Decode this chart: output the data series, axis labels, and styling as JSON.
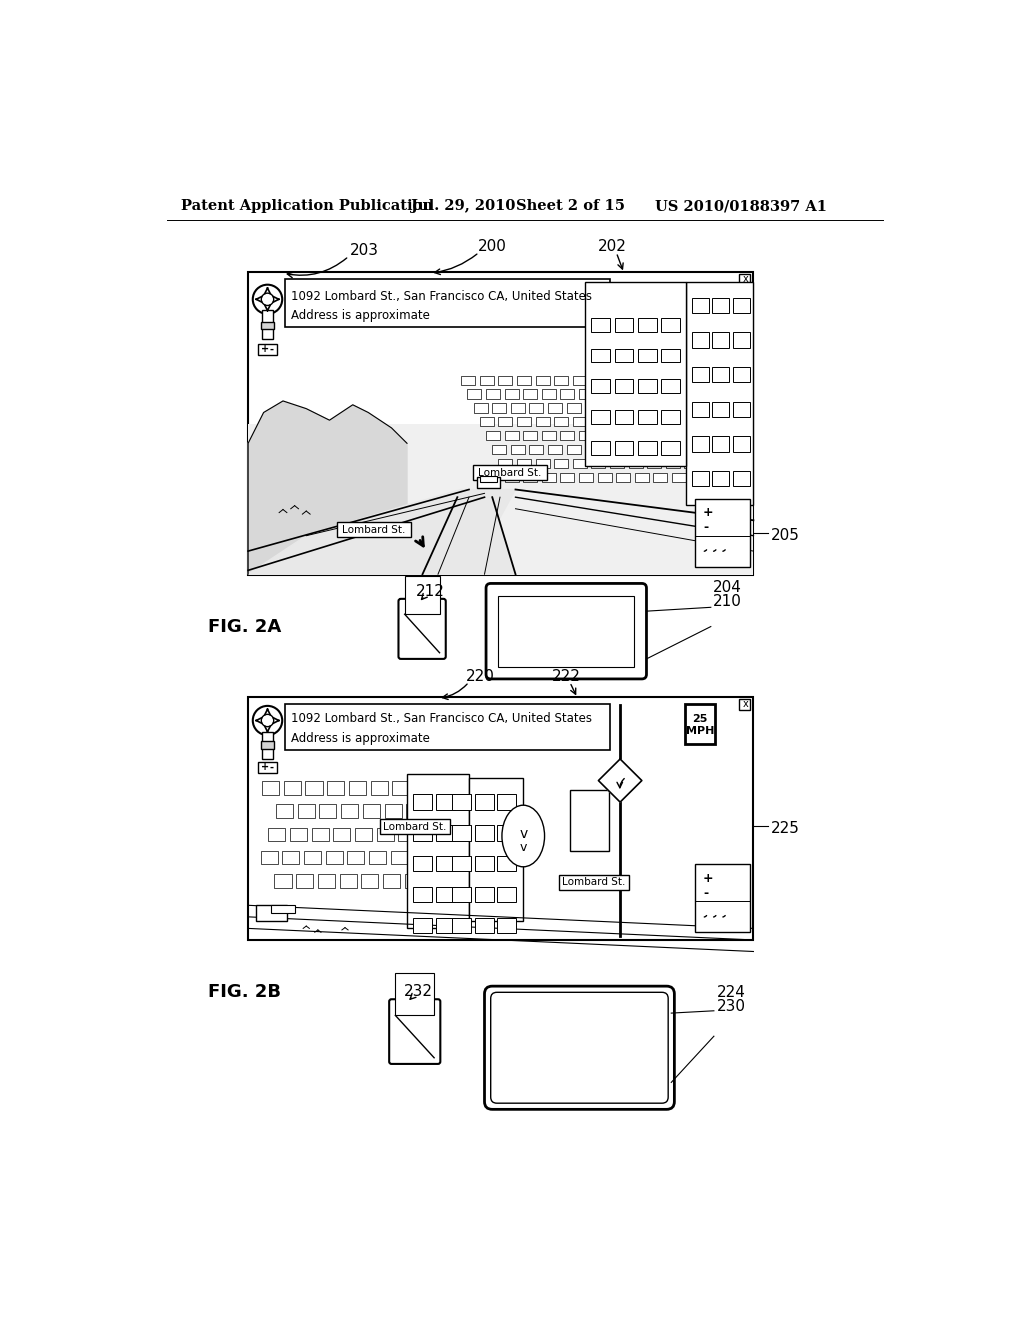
{
  "bg_color": "#ffffff",
  "header_text": "Patent Application Publication",
  "header_date": "Jul. 29, 2010",
  "header_sheet": "Sheet 2 of 15",
  "header_patent": "US 2010/0188397 A1",
  "fig2a_label": "FIG. 2A",
  "fig2b_label": "FIG. 2B",
  "label_200": "200",
  "label_202": "202",
  "label_203": "203",
  "label_204": "204",
  "label_205": "205",
  "label_210": "210",
  "label_212": "212",
  "label_220": "220",
  "label_222": "222",
  "label_224": "224",
  "label_225": "225",
  "label_230": "230",
  "label_232": "232",
  "address_line1": "1092 Lombard St., San Francisco CA, United States",
  "address_line2": "Address is approximate",
  "lombard_st": "Lombard St.",
  "speed_text": "25\nMPH"
}
